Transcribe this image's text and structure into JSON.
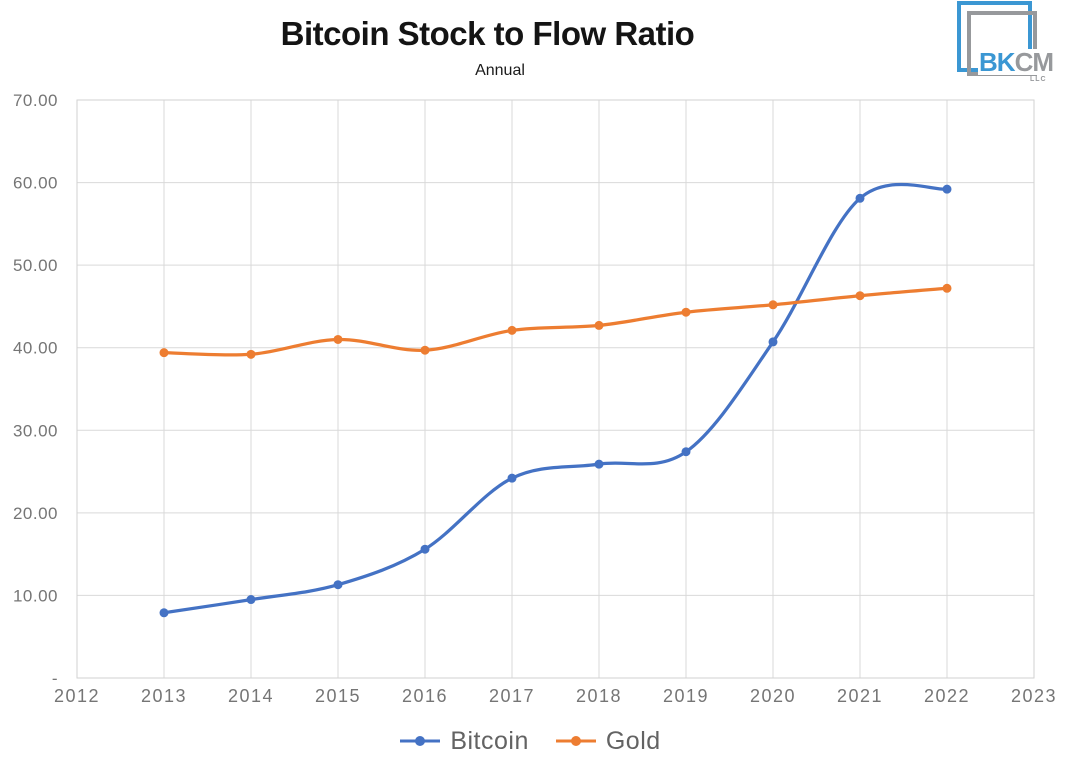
{
  "header": {
    "title": "Bitcoin Stock to Flow Ratio",
    "subtitle": "Annual"
  },
  "logo": {
    "text_blue": "BK",
    "text_gray": "CM",
    "text_sub": "LLC",
    "blue_color": "#3B97D3",
    "gray_color": "#97999C"
  },
  "chart_data": {
    "type": "line",
    "title": "Bitcoin Stock to Flow Ratio",
    "subtitle": "Annual",
    "x": [
      2013,
      2014,
      2015,
      2016,
      2017,
      2018,
      2019,
      2020,
      2021,
      2022
    ],
    "series": [
      {
        "name": "Bitcoin",
        "color": "#4472C4",
        "values": [
          7.9,
          9.5,
          11.3,
          15.6,
          24.2,
          25.9,
          27.4,
          40.7,
          58.1,
          59.2
        ]
      },
      {
        "name": "Gold",
        "color": "#ED7D31",
        "values": [
          39.4,
          39.2,
          41.0,
          39.7,
          42.1,
          42.7,
          44.3,
          45.2,
          46.3,
          47.2
        ]
      }
    ],
    "x_axis": {
      "tick_labels": [
        "2012",
        "2013",
        "2014",
        "2015",
        "2016",
        "2017",
        "2018",
        "2019",
        "2020",
        "2021",
        "2022",
        "2023"
      ],
      "range": [
        2012,
        2023
      ]
    },
    "y_axis": {
      "tick_labels": [
        "70.00",
        "60.00",
        "50.00",
        "40.00",
        "30.00",
        "20.00",
        "10.00",
        "-"
      ],
      "tick_values": [
        70,
        60,
        50,
        40,
        30,
        20,
        10,
        0
      ],
      "range": [
        0,
        70
      ]
    },
    "grid": true,
    "smooth_lines": true,
    "legend_position": "bottom",
    "colors": {
      "gridline": "#D9D9D9",
      "plot_border": "#D2D2D2",
      "axis_label": "#757575",
      "legend_text": "#636363"
    }
  }
}
